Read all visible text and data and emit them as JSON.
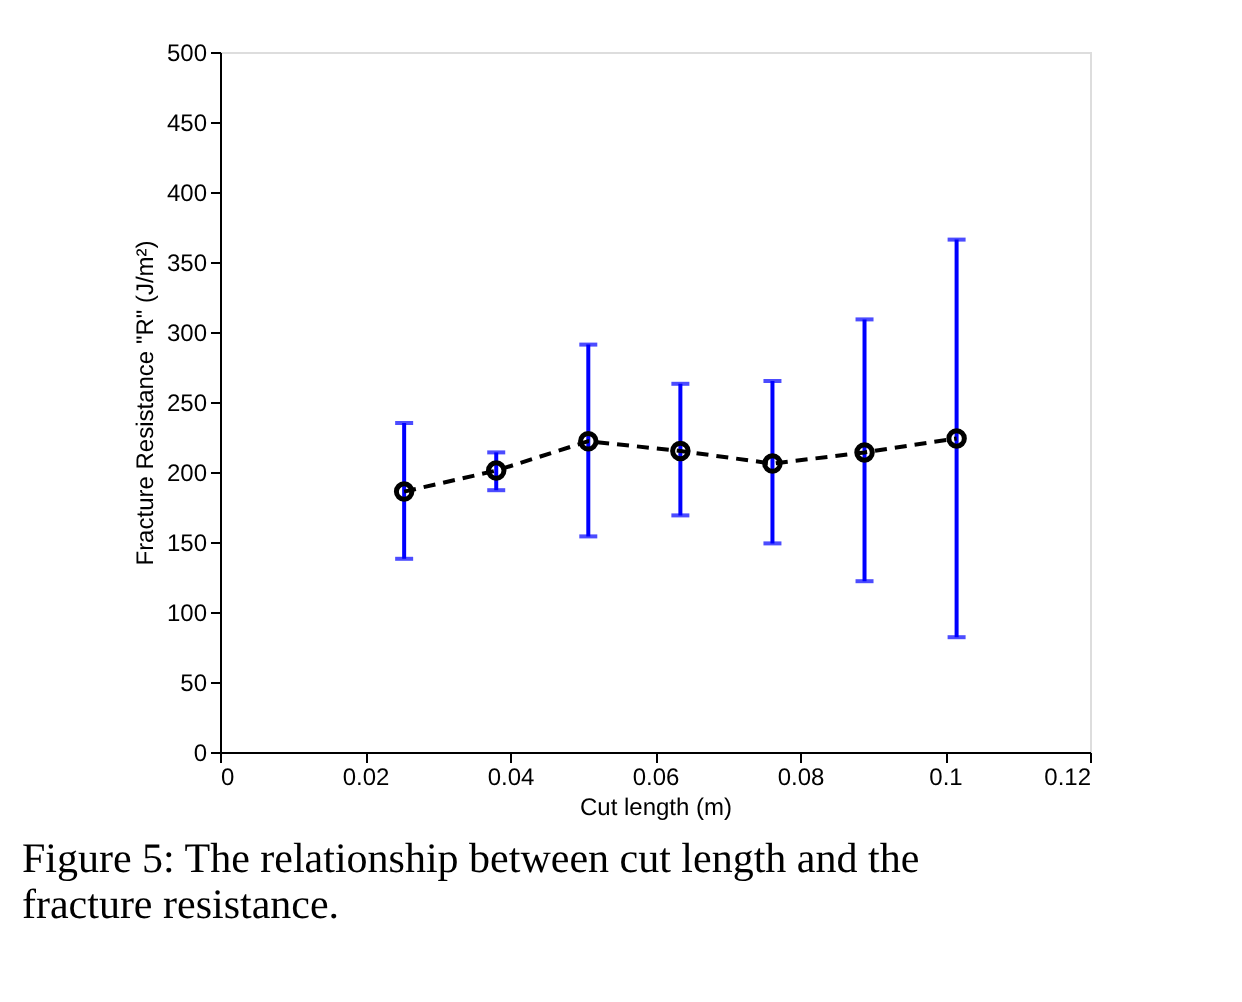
{
  "chart_data": {
    "type": "line",
    "xlabel": "Cut length (m)",
    "ylabel": "Fracture Resistance \"R\" (J/m²)",
    "x": [
      0.0254,
      0.0381,
      0.0508,
      0.0635,
      0.0762,
      0.0889,
      0.1016
    ],
    "series": [
      {
        "color": "#000000",
        "values": [
          186,
          201,
          222,
          215,
          206,
          214,
          224
        ],
        "errors": [
          [
            138,
            235
          ],
          [
            187,
            214
          ],
          [
            154,
            291
          ],
          [
            169,
            263
          ],
          [
            149,
            265
          ],
          [
            122,
            309
          ],
          [
            82,
            366
          ]
        ]
      }
    ],
    "marker": "circle",
    "line_style": "dashed",
    "xlim": [
      0,
      0.12
    ],
    "xticks": [
      0,
      0.02,
      0.04,
      0.06,
      0.08,
      0.1,
      0.12
    ],
    "ylim": [
      0,
      500
    ],
    "yticks": [
      0,
      50,
      100,
      150,
      200,
      250,
      300,
      350,
      400,
      450,
      500
    ],
    "grid": false,
    "annotations": [
      "Figure 5: The relationship between cut length and the fracture resistance."
    ]
  }
}
